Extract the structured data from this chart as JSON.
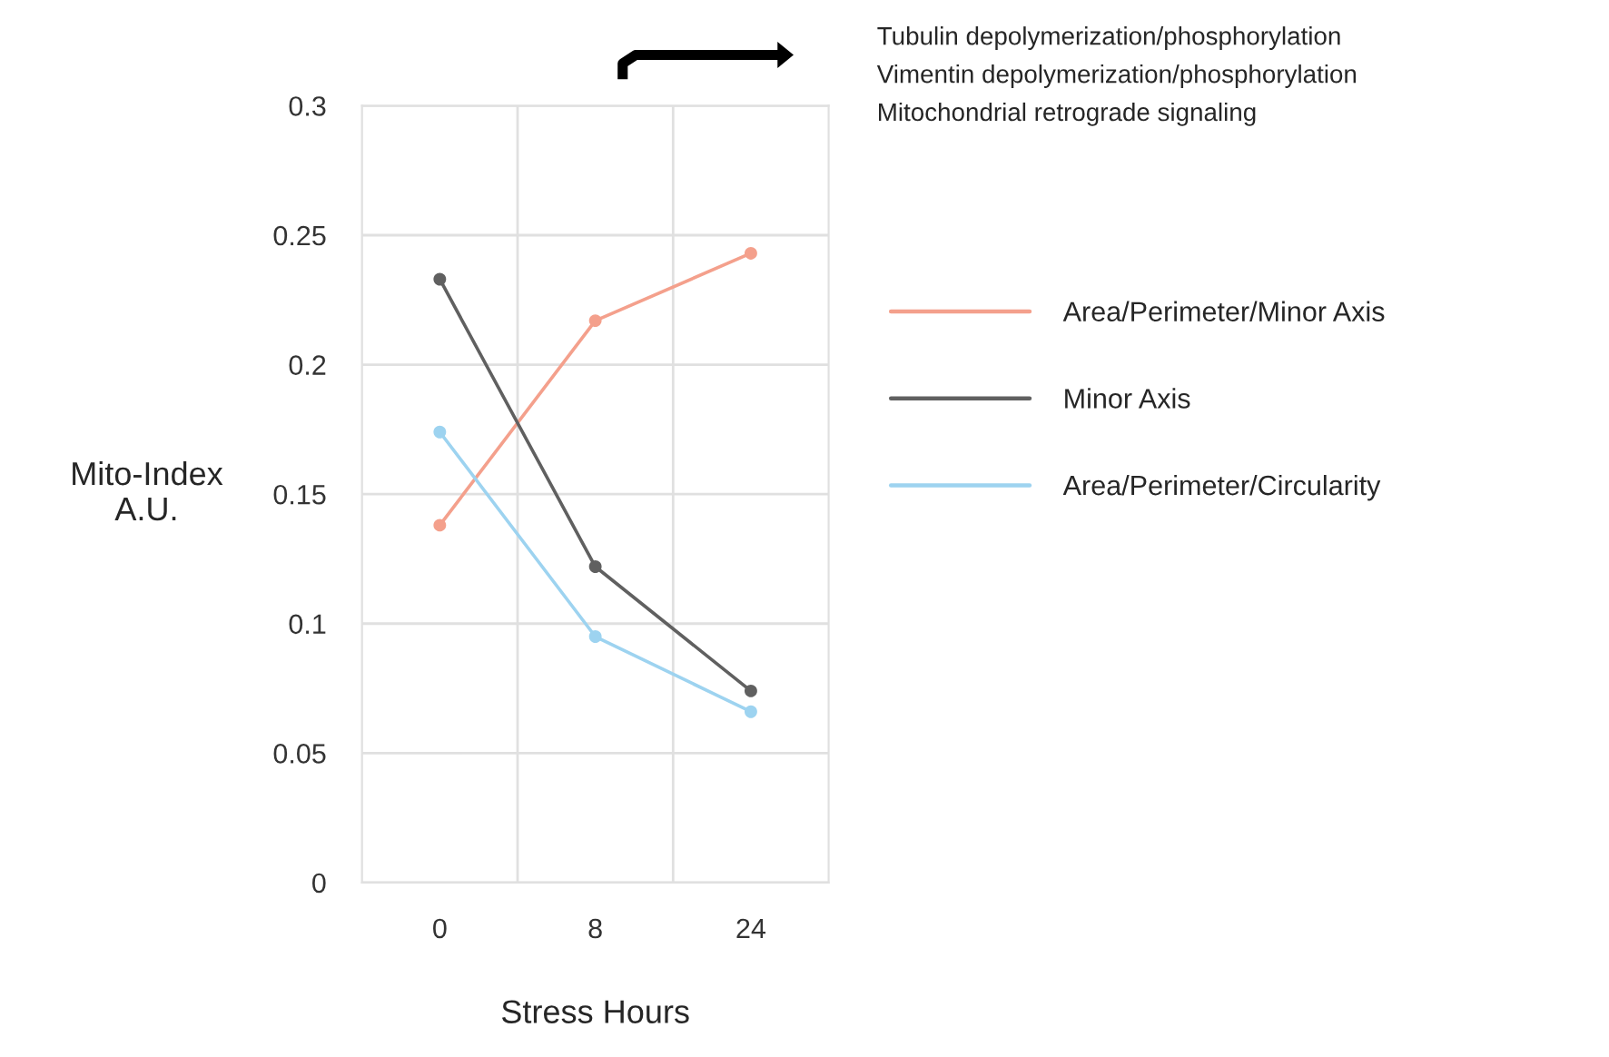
{
  "chart_data": {
    "type": "line",
    "xlabel": "Stress Hours",
    "ylabel": "Mito-Index\nA.U.",
    "categories": [
      "0",
      "8",
      "24"
    ],
    "series": [
      {
        "name": "Area/Perimeter/Minor Axis",
        "color": "#f4a08c",
        "values": [
          0.138,
          0.217,
          0.243
        ]
      },
      {
        "name": "Minor Axis",
        "color": "#606060",
        "values": [
          0.233,
          0.122,
          0.074
        ]
      },
      {
        "name": "Area/Perimeter/Circularity",
        "color": "#9dd3f0",
        "values": [
          0.174,
          0.095,
          0.066
        ]
      }
    ],
    "ylim": [
      0,
      0.3
    ],
    "yticks": [
      0,
      0.05,
      0.1,
      0.15,
      0.2,
      0.25,
      0.3
    ],
    "grid": true,
    "legend": "right",
    "marker": "circle",
    "line_style": "solid",
    "annotations": [
      "Tubulin depolymerization/phosphorylation",
      "Vimentin depolymerization/phosphorylation",
      "Mitochondrial retrograde signaling"
    ]
  }
}
